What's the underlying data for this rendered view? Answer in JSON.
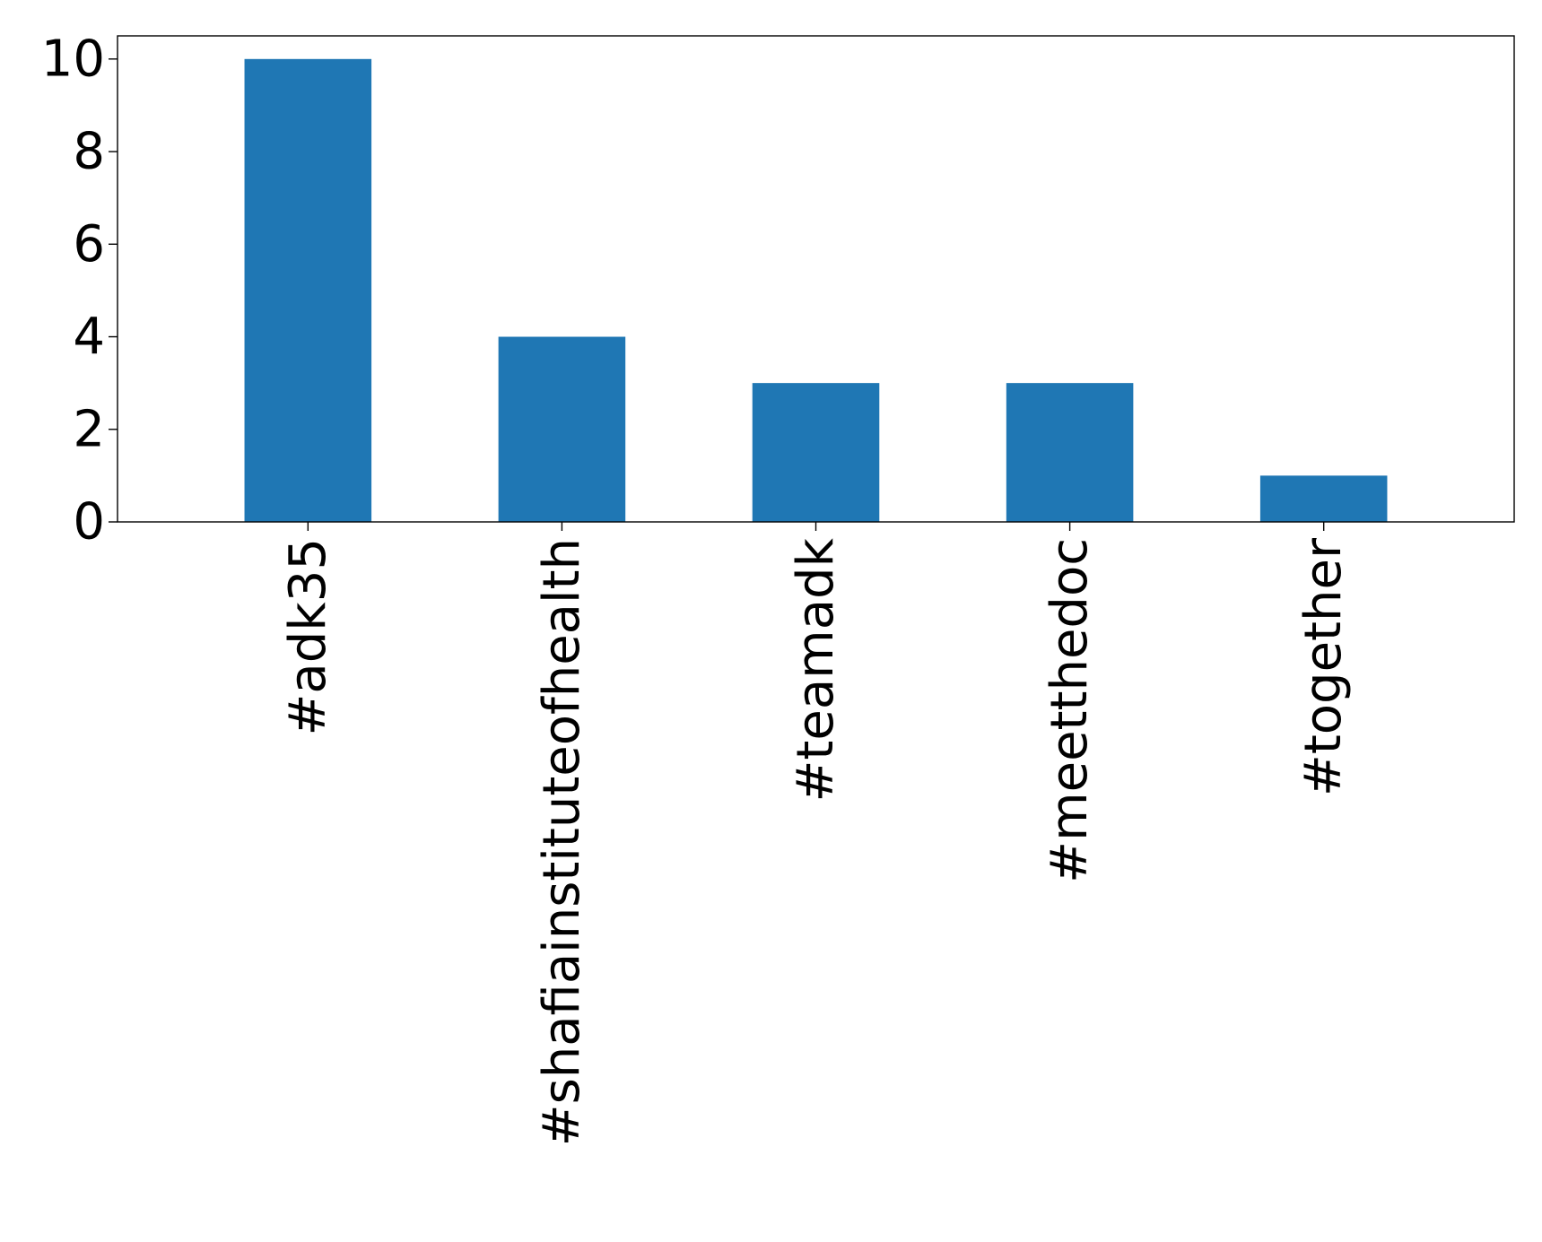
{
  "chart_data": {
    "type": "bar",
    "title": "",
    "xlabel": "",
    "ylabel": "",
    "categories": [
      "#adk35",
      "#shafiainstituteofhealth",
      "#teamadk",
      "#meetthedoc",
      "#together"
    ],
    "values": [
      10,
      4,
      3,
      3,
      1
    ],
    "ylim": [
      0,
      10.5
    ],
    "yticks": [
      0,
      2,
      4,
      6,
      8,
      10
    ],
    "bar_color": "#1f77b4",
    "grid": false,
    "legend": "none"
  }
}
